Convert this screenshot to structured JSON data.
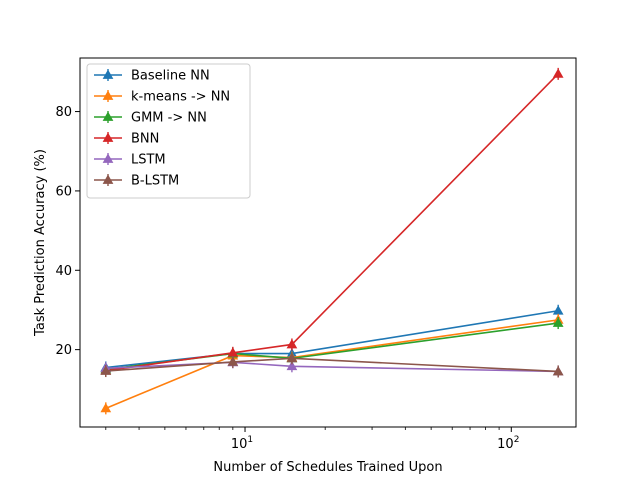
{
  "chart_data": {
    "type": "line",
    "title": "",
    "xlabel": "Number of Schedules Trained Upon",
    "ylabel": "Task Prediction Accuracy (%)",
    "x_scale": "log",
    "x": [
      3,
      9,
      15,
      150
    ],
    "xlim": [
      2.4,
      175
    ],
    "ylim": [
      0.5,
      93.5
    ],
    "x_ticks": [
      {
        "value": 10,
        "base": "10",
        "exp": "1"
      },
      {
        "value": 100,
        "base": "10",
        "exp": "2"
      }
    ],
    "y_ticks": [
      20,
      40,
      60,
      80
    ],
    "legend_position": "upper-left",
    "grid": false,
    "series": [
      {
        "name": "Baseline NN",
        "color": "#1f77b4",
        "values": [
          15.5,
          19.0,
          19.0,
          29.8
        ]
      },
      {
        "name": "k-means -> NN",
        "color": "#ff7f0e",
        "values": [
          5.2,
          18.5,
          18.0,
          27.5
        ]
      },
      {
        "name": "GMM -> NN",
        "color": "#2ca02c",
        "values": [
          15.0,
          19.0,
          17.8,
          26.7
        ]
      },
      {
        "name": "BNN",
        "color": "#d62728",
        "values": [
          14.7,
          19.2,
          21.3,
          89.5
        ]
      },
      {
        "name": "LSTM",
        "color": "#9467bd",
        "values": [
          15.3,
          16.8,
          15.8,
          14.5
        ]
      },
      {
        "name": "B-LSTM",
        "color": "#8c564b",
        "values": [
          14.6,
          16.9,
          17.8,
          14.5
        ]
      }
    ]
  }
}
